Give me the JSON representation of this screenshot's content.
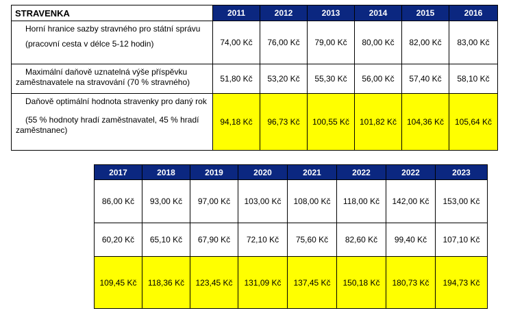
{
  "title": "STRAVENKA",
  "table1": {
    "years": [
      "2011",
      "2012",
      "2013",
      "2014",
      "2015",
      "2016"
    ],
    "rows": [
      {
        "label_lines": [
          "Horní hranice sazby stravného pro státní správu",
          "(pracovní cesta v délce 5-12 hodin)"
        ],
        "values": [
          "74,00 Kč",
          "76,00 Kč",
          "79,00 Kč",
          "80,00 Kč",
          "82,00 Kč",
          "83,00 Kč"
        ]
      },
      {
        "label_lines": [
          "Maximální daňově uznatelná výše příspěvku zaměstnavatele na stravování (70 % stravného)"
        ],
        "values": [
          "51,80 Kč",
          "53,20 Kč",
          "55,30 Kč",
          "56,00 Kč",
          "57,40 Kč",
          "58,10 Kč"
        ]
      },
      {
        "label_lines": [
          "Daňově optimální hodnota stravenky pro daný rok",
          "(55 % hodnoty hradí zaměstnavatel, 45 % hradí zaměstnanec)"
        ],
        "values": [
          "94,18 Kč",
          "96,73 Kč",
          "100,55 Kč",
          "101,82 Kč",
          "104,36 Kč",
          "105,64 Kč"
        ]
      }
    ]
  },
  "table2": {
    "years": [
      "2017",
      "2018",
      "2019",
      "2020",
      "2021",
      "2022",
      "2022",
      "2023"
    ],
    "rows": [
      {
        "values": [
          "86,00 Kč",
          "93,00 Kč",
          "97,00 Kč",
          "103,00 Kč",
          "108,00 Kč",
          "118,00 Kč",
          "142,00 Kč",
          "153,00 Kč"
        ]
      },
      {
        "values": [
          "60,20 Kč",
          "65,10 Kč",
          "67,90 Kč",
          "72,10 Kč",
          "75,60 Kč",
          "82,60 Kč",
          "99,40 Kč",
          "107,10 Kč"
        ]
      },
      {
        "values": [
          "109,45 Kč",
          "118,36 Kč",
          "123,45 Kč",
          "131,09 Kč",
          "137,45 Kč",
          "150,18 Kč",
          "180,73 Kč",
          "194,73 Kč"
        ]
      }
    ]
  },
  "colors": {
    "header_bg": "#0b2780",
    "header_text": "#ffffff",
    "highlight": "#ffff00"
  }
}
